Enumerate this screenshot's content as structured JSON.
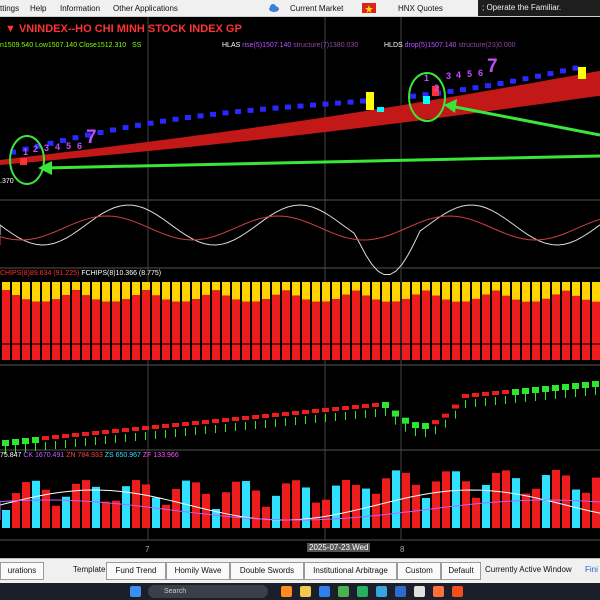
{
  "menu": {
    "items": [
      "ttings",
      "Help",
      "Information",
      "Other Applications"
    ],
    "current_market": "Current Market",
    "hnx_quotes": "HNX Quotes",
    "status_text": "; Operate the Familiar."
  },
  "chart": {
    "title": "VNINDEX--HO CHI MINH STOCK INDEX  GP",
    "ohlc_high": "n1509.540",
    "ohlc_low": "Low1507.140",
    "ohlc_close": "Close1512.310",
    "ohlc_tag": "SS",
    "hlas_label": "HLAS",
    "hlas_val": "rise(5)1507.140",
    "hlas_struct": "structure(7)1380.030",
    "hlds_label": "HLDS",
    "hlds_val": "drop(5)1507.140",
    "hlds_struct": "structure(23)0.000",
    "low_label": ".370",
    "count_left": [
      "1",
      "2",
      "3",
      "4",
      "5",
      "6"
    ],
    "count_left_big": "7",
    "count_right": [
      "1",
      "2",
      "3",
      "4",
      "5",
      "6"
    ],
    "count_right_big": "7",
    "fchips_a": "CHIPS(8)89.634 (91.225)",
    "fchips_b": "FCHIPS(8)10.366 (8.775)",
    "ck_a": "75.847",
    "ck_b": "CK 1670.491",
    "ck_c": "ZN 784.933",
    "ck_d": "ZS 650.967",
    "ck_e": "ZF 133.966",
    "x_tick_7": "7",
    "x_date": "2025-07-23.Wed",
    "x_tick_8": "8"
  },
  "tabs": [
    "urations",
    "Template",
    "Fund Trend",
    "Homily Wave",
    "Double Swords",
    "Institutional Arbitrage",
    "Custom",
    "Default"
  ],
  "active_window": "Currently Active Window",
  "active_window_cut": "Fini",
  "taskbar": {
    "search_label": "Search"
  }
}
